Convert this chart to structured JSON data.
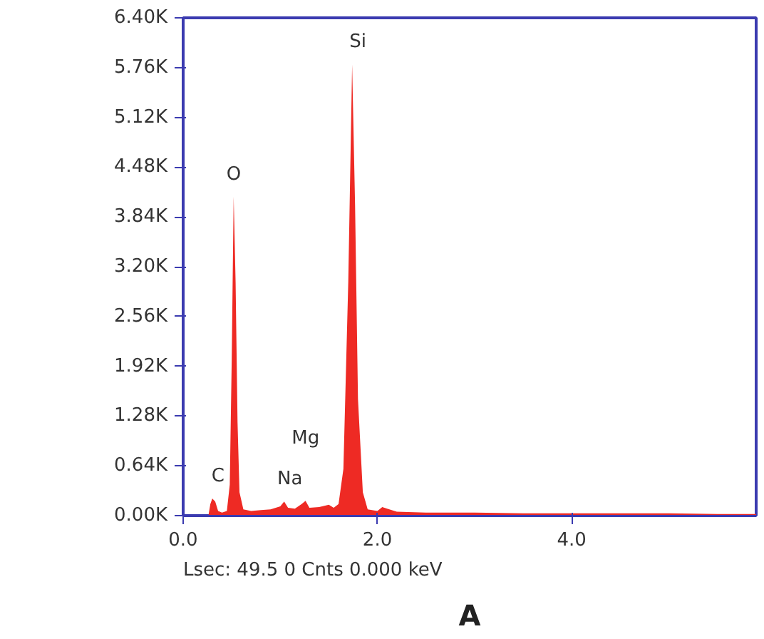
{
  "chart_data": {
    "type": "area",
    "x": [
      0.25,
      0.26,
      0.28,
      0.3,
      0.33,
      0.36,
      0.4,
      0.45,
      0.48,
      0.5,
      0.52,
      0.54,
      0.56,
      0.58,
      0.62,
      0.7,
      0.8,
      0.9,
      1.0,
      1.04,
      1.08,
      1.15,
      1.22,
      1.26,
      1.3,
      1.4,
      1.5,
      1.55,
      1.6,
      1.65,
      1.7,
      1.74,
      1.77,
      1.8,
      1.85,
      1.9,
      2.0,
      2.05,
      2.1,
      2.2,
      2.5,
      3.0,
      3.5,
      4.0,
      4.5,
      5.0,
      5.5,
      5.9
    ],
    "series": [
      {
        "color": "#ee2a24",
        "values": [
          0,
          0,
          150,
          220,
          180,
          60,
          40,
          60,
          400,
          2000,
          4100,
          3000,
          1200,
          300,
          80,
          60,
          70,
          80,
          120,
          180,
          100,
          90,
          150,
          190,
          100,
          110,
          140,
          100,
          150,
          600,
          3000,
          5800,
          4000,
          1500,
          300,
          80,
          60,
          110,
          90,
          50,
          40,
          40,
          30,
          30,
          30,
          30,
          20,
          20
        ]
      }
    ],
    "xlim": [
      0,
      5.9
    ],
    "xticks": [
      {
        "value": 0,
        "label": "0.0"
      },
      {
        "value": 2,
        "label": "2.0"
      },
      {
        "value": 4,
        "label": "4.0"
      }
    ],
    "ylim": [
      0,
      6400
    ],
    "yticks": [
      {
        "value": 0,
        "label": "0.00K"
      },
      {
        "value": 640,
        "label": "0.64K"
      },
      {
        "value": 1280,
        "label": "1.28K"
      },
      {
        "value": 1920,
        "label": "1.92K"
      },
      {
        "value": 2560,
        "label": "2.56K"
      },
      {
        "value": 3200,
        "label": "3.20K"
      },
      {
        "value": 3840,
        "label": "3.84K"
      },
      {
        "value": 4480,
        "label": "4.48K"
      },
      {
        "value": 5120,
        "label": "5.12K"
      },
      {
        "value": 5760,
        "label": "5.76K"
      },
      {
        "value": 6400,
        "label": "6.40K"
      }
    ],
    "grid": false,
    "annotations": [
      {
        "text": "C",
        "x": 0.3,
        "y": 220
      },
      {
        "text": "O",
        "x": 0.52,
        "y": 4100
      },
      {
        "text": "Na",
        "x": 1.04,
        "y": 180
      },
      {
        "text": "Mg",
        "x": 1.26,
        "y": 190
      },
      {
        "text": "Si",
        "x": 1.74,
        "y": 5800
      },
      "Lsec: 49.5 0 Cnts  0.000 keV",
      "A"
    ]
  }
}
